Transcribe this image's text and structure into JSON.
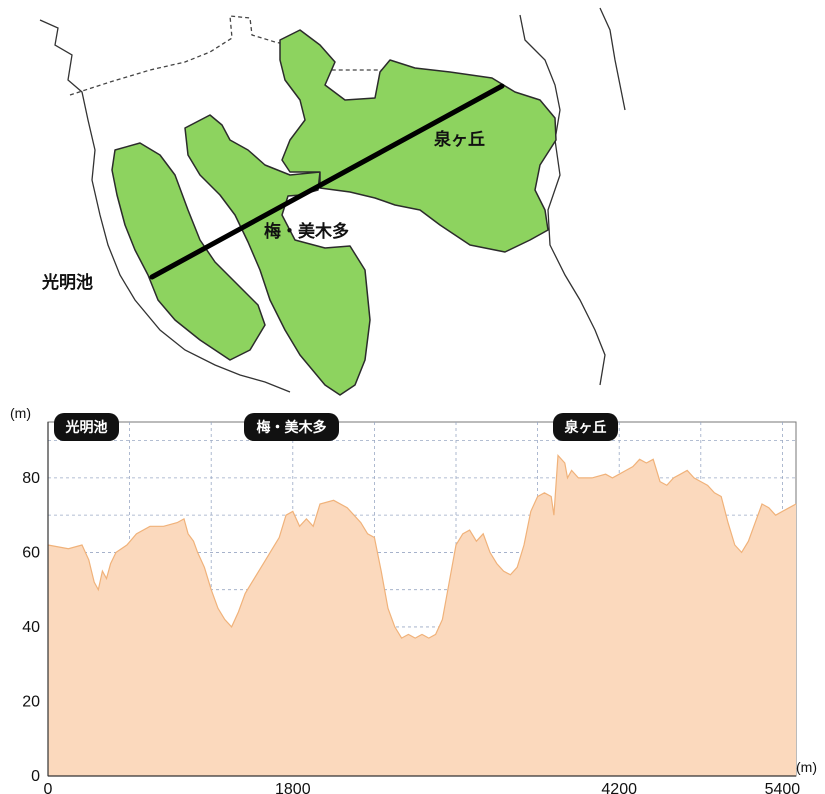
{
  "map": {
    "labels": {
      "koumyouike": "光明池",
      "ume_mikita": "梅・美木多",
      "izumigaoka": "泉ヶ丘"
    },
    "colors": {
      "area_fill": "#8dd35f",
      "area_stroke": "#2b2b2b",
      "section_line": "#000000",
      "boundary": "#333333"
    }
  },
  "chart_data": {
    "type": "area",
    "title": "",
    "xlabel": "",
    "ylabel": "",
    "x_unit": "(m)",
    "y_unit": "(m)",
    "xlim": [
      0,
      5500
    ],
    "ylim": [
      0,
      95
    ],
    "x_ticks": [
      0,
      1800,
      4200,
      5400
    ],
    "y_ticks": [
      0,
      20,
      40,
      60,
      80
    ],
    "grid": true,
    "fill_color": "#fbd9bd",
    "line_color": "#f0b27a",
    "annotations": [
      {
        "label": "光明池",
        "x": 0
      },
      {
        "label": "梅・美木多",
        "x": 1800
      },
      {
        "label": "泉ヶ丘",
        "x": 4200
      }
    ],
    "series": [
      {
        "x": [
          0,
          150,
          250,
          300,
          320,
          340,
          370,
          400,
          430,
          460,
          500,
          580,
          650,
          750,
          850,
          950,
          1000,
          1030,
          1050,
          1070,
          1100,
          1150,
          1200,
          1250,
          1300,
          1350,
          1400,
          1450,
          1500,
          1550,
          1600,
          1650,
          1700,
          1750,
          1800,
          1850,
          1900,
          1950,
          2000,
          2100,
          2200,
          2300,
          2350,
          2400,
          2450,
          2500,
          2550,
          2600,
          2650,
          2700,
          2750,
          2800,
          2850,
          2900,
          2950,
          3000,
          3050,
          3100,
          3150,
          3200,
          3250,
          3300,
          3350,
          3400,
          3450,
          3500,
          3550,
          3600,
          3650,
          3700,
          3720,
          3750,
          3800,
          3820,
          3850,
          3900,
          4000,
          4100,
          4150,
          4200,
          4250,
          4300,
          4350,
          4400,
          4450,
          4500,
          4550,
          4600,
          4650,
          4700,
          4750,
          4800,
          4850,
          4900,
          4950,
          5000,
          5050,
          5100,
          5150,
          5200,
          5250,
          5300,
          5350,
          5400,
          5450,
          5500
        ],
        "y": [
          62,
          61,
          62,
          58,
          55,
          52,
          50,
          55,
          53,
          57,
          60,
          62,
          65,
          67,
          67,
          68,
          69,
          65,
          64,
          63,
          60,
          56,
          50,
          45,
          42,
          40,
          44,
          49,
          52,
          55,
          58,
          61,
          64,
          70,
          71,
          67,
          69,
          67,
          73,
          74,
          72,
          68,
          65,
          64,
          55,
          45,
          40,
          37,
          38,
          37,
          38,
          37,
          38,
          42,
          52,
          62,
          65,
          66,
          63,
          65,
          60,
          57,
          55,
          54,
          56,
          62,
          71,
          75,
          76,
          75,
          70,
          86,
          84,
          80,
          82,
          80,
          80,
          81,
          80,
          81,
          82,
          83,
          85,
          84,
          85,
          79,
          78,
          80,
          81,
          82,
          80,
          79,
          78,
          76,
          75,
          68,
          62,
          60,
          63,
          68,
          73,
          72,
          70,
          71,
          72,
          73
        ]
      }
    ]
  }
}
